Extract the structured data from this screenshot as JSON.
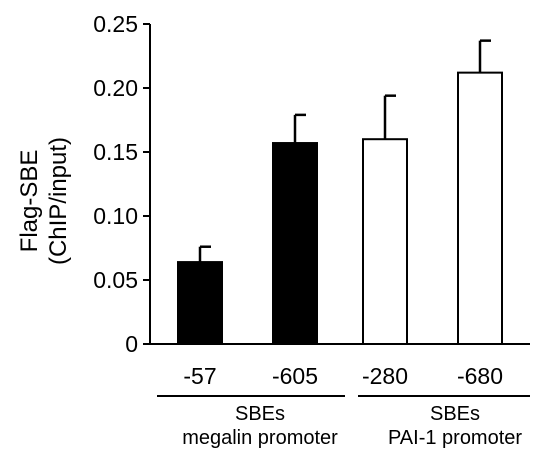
{
  "chart_data": {
    "type": "bar",
    "ylabel": [
      "Flag-SBE",
      "(ChIP/input)"
    ],
    "ylim": [
      0,
      0.25
    ],
    "yticks": [
      "0",
      "0.05",
      "0.10",
      "0.15",
      "0.20",
      "0.25"
    ],
    "grid": false,
    "categories": [
      "-57",
      "-605",
      "-280",
      "-680"
    ],
    "values": [
      0.064,
      0.157,
      0.16,
      0.212
    ],
    "errors": [
      0.012,
      0.022,
      0.034,
      0.025
    ],
    "bar_colors": [
      "#000000",
      "#000000",
      "#ffffff",
      "#ffffff"
    ],
    "groups": [
      {
        "lines": [
          "SBEs",
          "megalin promoter"
        ],
        "categories": [
          "-57",
          "-605"
        ]
      },
      {
        "lines": [
          "SBEs",
          "PAI-1 promoter"
        ],
        "categories": [
          "-280",
          "-680"
        ]
      }
    ]
  }
}
